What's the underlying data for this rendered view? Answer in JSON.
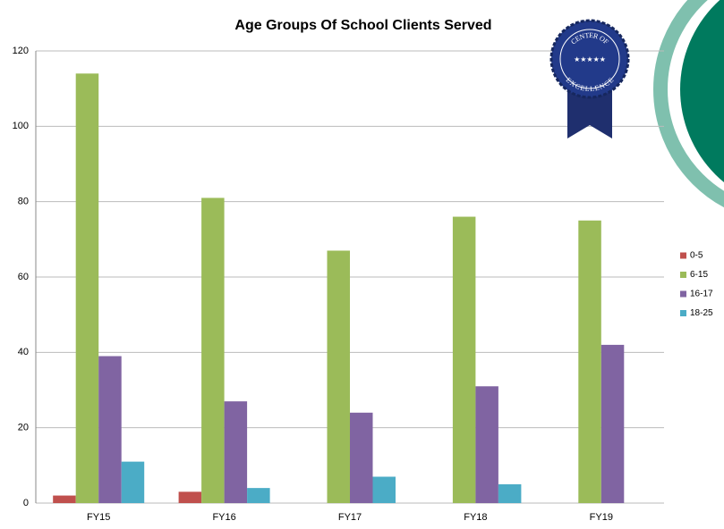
{
  "chart_data": {
    "type": "bar",
    "title": "Age Groups Of School Clients Served",
    "categories": [
      "FY15",
      "FY16",
      "FY17",
      "FY18",
      "FY19"
    ],
    "series": [
      {
        "name": "0-5",
        "color": "#c0504d",
        "values": [
          2,
          3,
          0,
          0,
          0
        ]
      },
      {
        "name": "6-15",
        "color": "#9bbb59",
        "values": [
          114,
          81,
          67,
          76,
          75
        ]
      },
      {
        "name": "16-17",
        "color": "#8064a2",
        "values": [
          39,
          27,
          24,
          31,
          42
        ]
      },
      {
        "name": "18-25",
        "color": "#4bacc6",
        "values": [
          11,
          4,
          7,
          5,
          0
        ]
      }
    ],
    "ylim": [
      0,
      120
    ],
    "yticks": [
      0,
      20,
      40,
      60,
      80,
      100,
      120
    ],
    "grid": true,
    "legend": "right"
  },
  "badge": {
    "top": "CENTER OF",
    "bottom": "EXCELLENCE"
  }
}
